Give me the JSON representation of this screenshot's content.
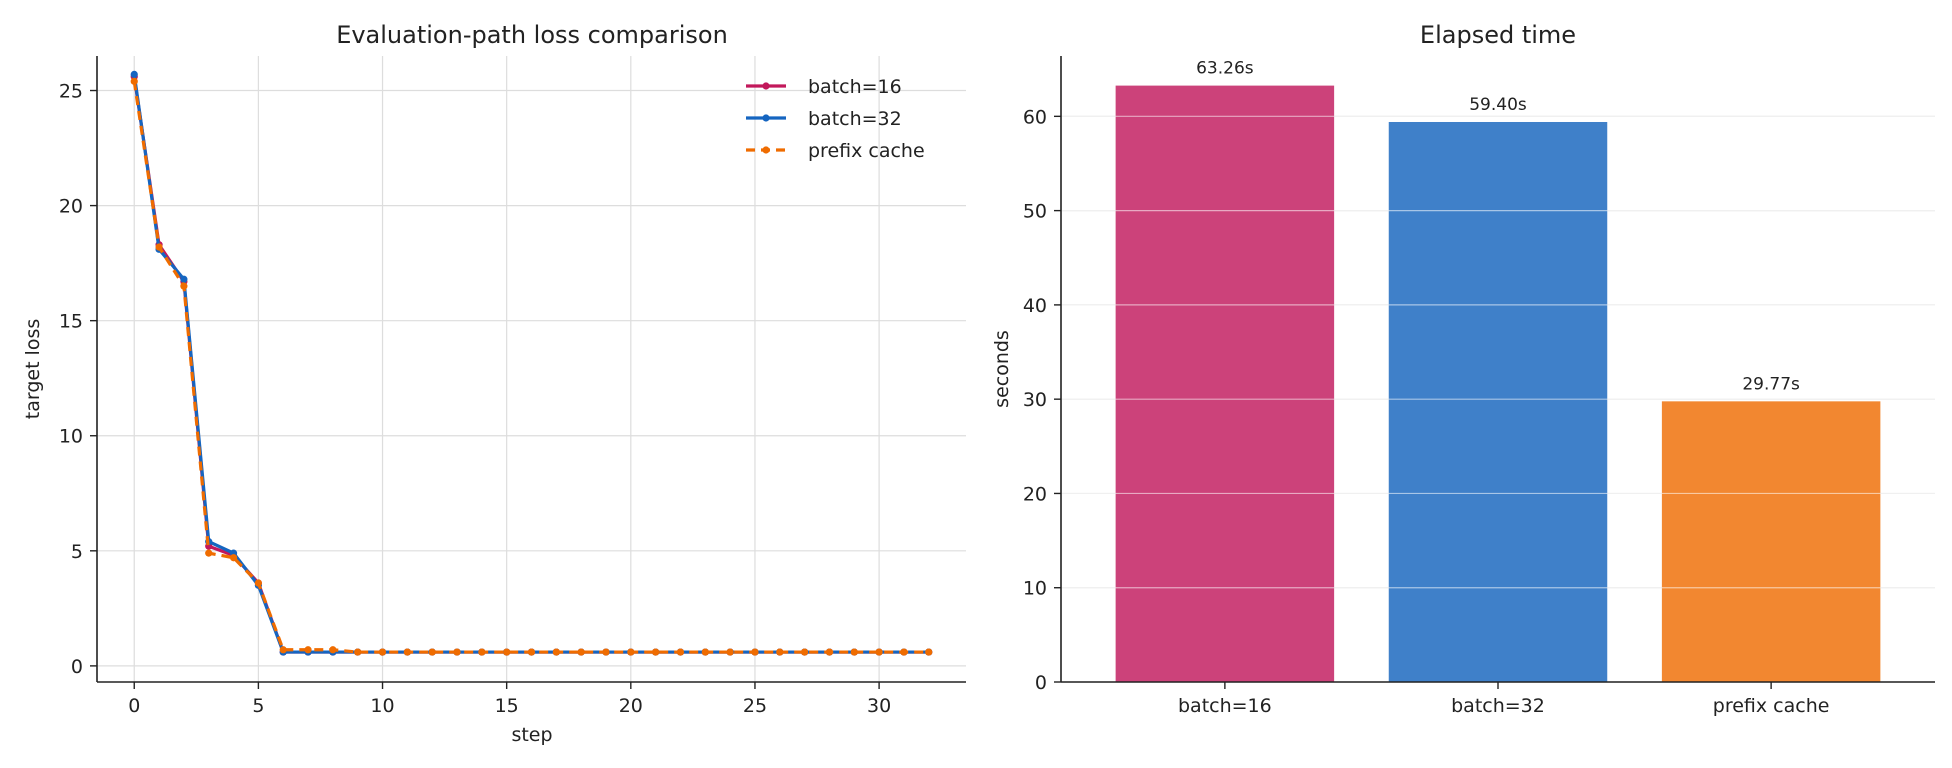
{
  "chart_data": [
    {
      "type": "line",
      "title": "Evaluation-path loss comparison",
      "xlabel": "step",
      "ylabel": "target loss",
      "xlim": [
        -1.5,
        33.5
      ],
      "ylim": [
        -0.7,
        26.5
      ],
      "xticks": [
        0,
        5,
        10,
        15,
        20,
        25,
        30
      ],
      "yticks": [
        0,
        5,
        10,
        15,
        20,
        25
      ],
      "grid": true,
      "legend_position": "top-right",
      "x": [
        0,
        1,
        2,
        3,
        4,
        5,
        6,
        7,
        8,
        9,
        10,
        11,
        12,
        13,
        14,
        15,
        16,
        17,
        18,
        19,
        20,
        21,
        22,
        23,
        24,
        25,
        26,
        27,
        28,
        29,
        30,
        31,
        32
      ],
      "series": [
        {
          "name": "batch=16",
          "color": "#c2185b",
          "style": "solid",
          "values": [
            25.6,
            18.3,
            16.7,
            5.2,
            4.8,
            3.6,
            0.6,
            0.6,
            0.6,
            0.6,
            0.6,
            0.6,
            0.6,
            0.6,
            0.6,
            0.6,
            0.6,
            0.6,
            0.6,
            0.6,
            0.6,
            0.6,
            0.6,
            0.6,
            0.6,
            0.6,
            0.6,
            0.6,
            0.6,
            0.6,
            0.6,
            0.6,
            0.6
          ]
        },
        {
          "name": "batch=32",
          "color": "#1565c0",
          "style": "solid",
          "values": [
            25.7,
            18.1,
            16.8,
            5.4,
            4.9,
            3.5,
            0.6,
            0.6,
            0.6,
            0.6,
            0.6,
            0.6,
            0.6,
            0.6,
            0.6,
            0.6,
            0.6,
            0.6,
            0.6,
            0.6,
            0.6,
            0.6,
            0.6,
            0.6,
            0.6,
            0.6,
            0.6,
            0.6,
            0.6,
            0.6,
            0.6,
            0.6,
            0.6
          ]
        },
        {
          "name": "prefix cache",
          "color": "#ef6c00",
          "style": "dashed",
          "values": [
            25.4,
            18.2,
            16.5,
            4.9,
            4.7,
            3.6,
            0.7,
            0.7,
            0.7,
            0.6,
            0.6,
            0.6,
            0.6,
            0.6,
            0.6,
            0.6,
            0.6,
            0.6,
            0.6,
            0.6,
            0.6,
            0.6,
            0.6,
            0.6,
            0.6,
            0.6,
            0.6,
            0.6,
            0.6,
            0.6,
            0.6,
            0.6,
            0.6
          ]
        }
      ]
    },
    {
      "type": "bar",
      "title": "Elapsed time",
      "xlabel": "",
      "ylabel": "seconds",
      "ylim": [
        0,
        66.4
      ],
      "yticks": [
        0,
        10,
        20,
        30,
        40,
        50,
        60
      ],
      "grid": true,
      "categories": [
        "batch=16",
        "batch=32",
        "prefix cache"
      ],
      "values": [
        63.26,
        59.4,
        29.77
      ],
      "data_labels": [
        "63.26s",
        "59.40s",
        "29.77s"
      ],
      "colors": [
        "#cc427a",
        "#3f80c9",
        "#f28730"
      ]
    }
  ]
}
